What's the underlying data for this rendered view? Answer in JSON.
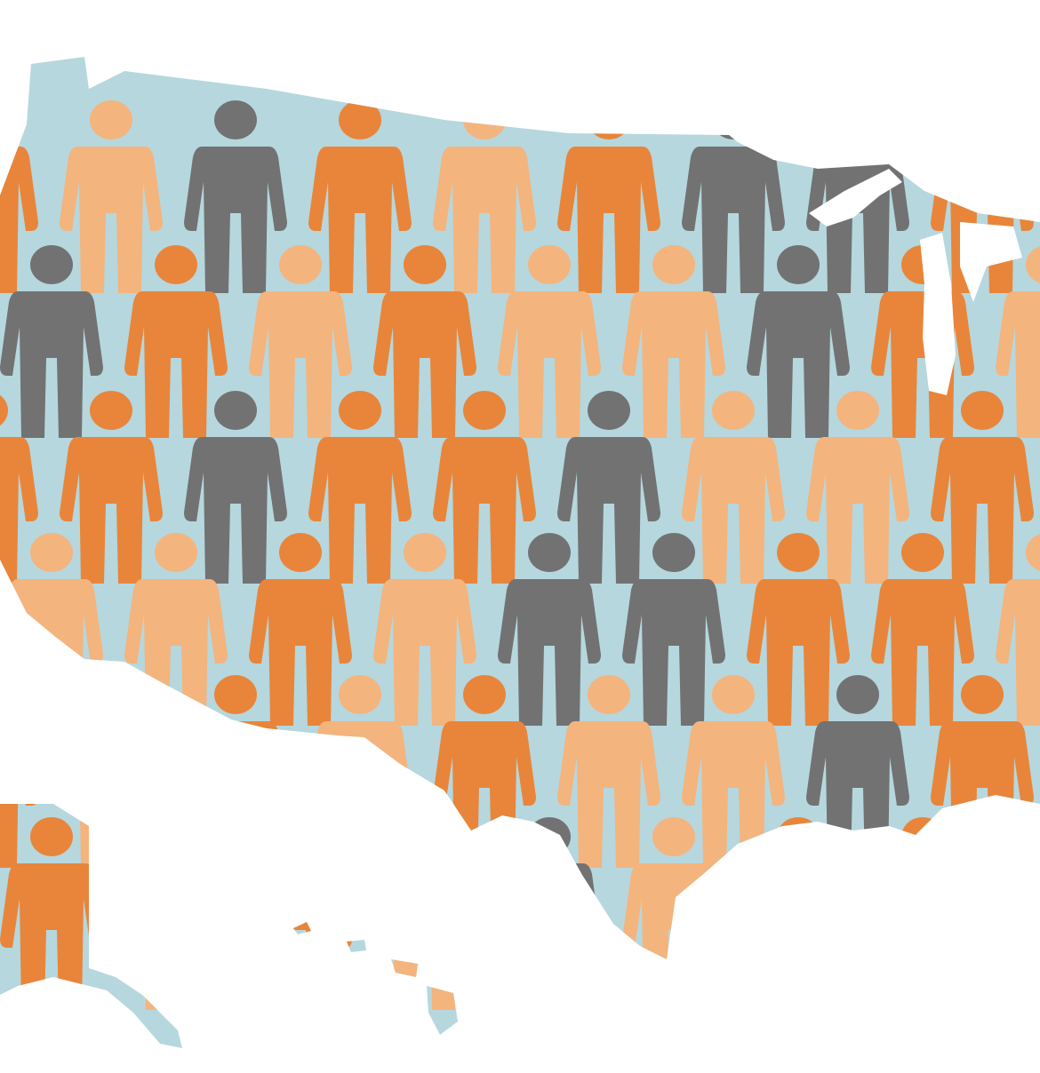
{
  "colors": {
    "background": "#ffffff",
    "map_fill": "#b6d7de",
    "orange": "#e8853a",
    "light_orange": "#f4b47d",
    "gray": "#727272",
    "lakes": "#ffffff"
  },
  "figure_rows": [
    [
      "orange",
      "light_orange",
      "gray",
      "orange",
      "light_orange",
      "orange",
      "gray",
      "gray",
      "orange",
      "light_orange"
    ],
    [
      "gray",
      "orange",
      "light_orange",
      "orange",
      "light_orange",
      "light_orange",
      "gray",
      "orange",
      "light_orange"
    ],
    [
      "orange",
      "orange",
      "gray",
      "orange",
      "orange",
      "gray",
      "light_orange",
      "light_orange",
      "orange"
    ],
    [
      "light_orange",
      "light_orange",
      "orange",
      "light_orange",
      "gray",
      "gray",
      "orange",
      "orange",
      "light_orange"
    ],
    [
      "orange",
      "light_orange",
      "orange",
      "light_orange",
      "orange",
      "light_orange",
      "light_orange",
      "gray",
      "orange"
    ],
    [
      "orange",
      "light_orange",
      "orange",
      "light_orange",
      "gray",
      "light_orange",
      "orange",
      "orange",
      "light_orange"
    ]
  ]
}
